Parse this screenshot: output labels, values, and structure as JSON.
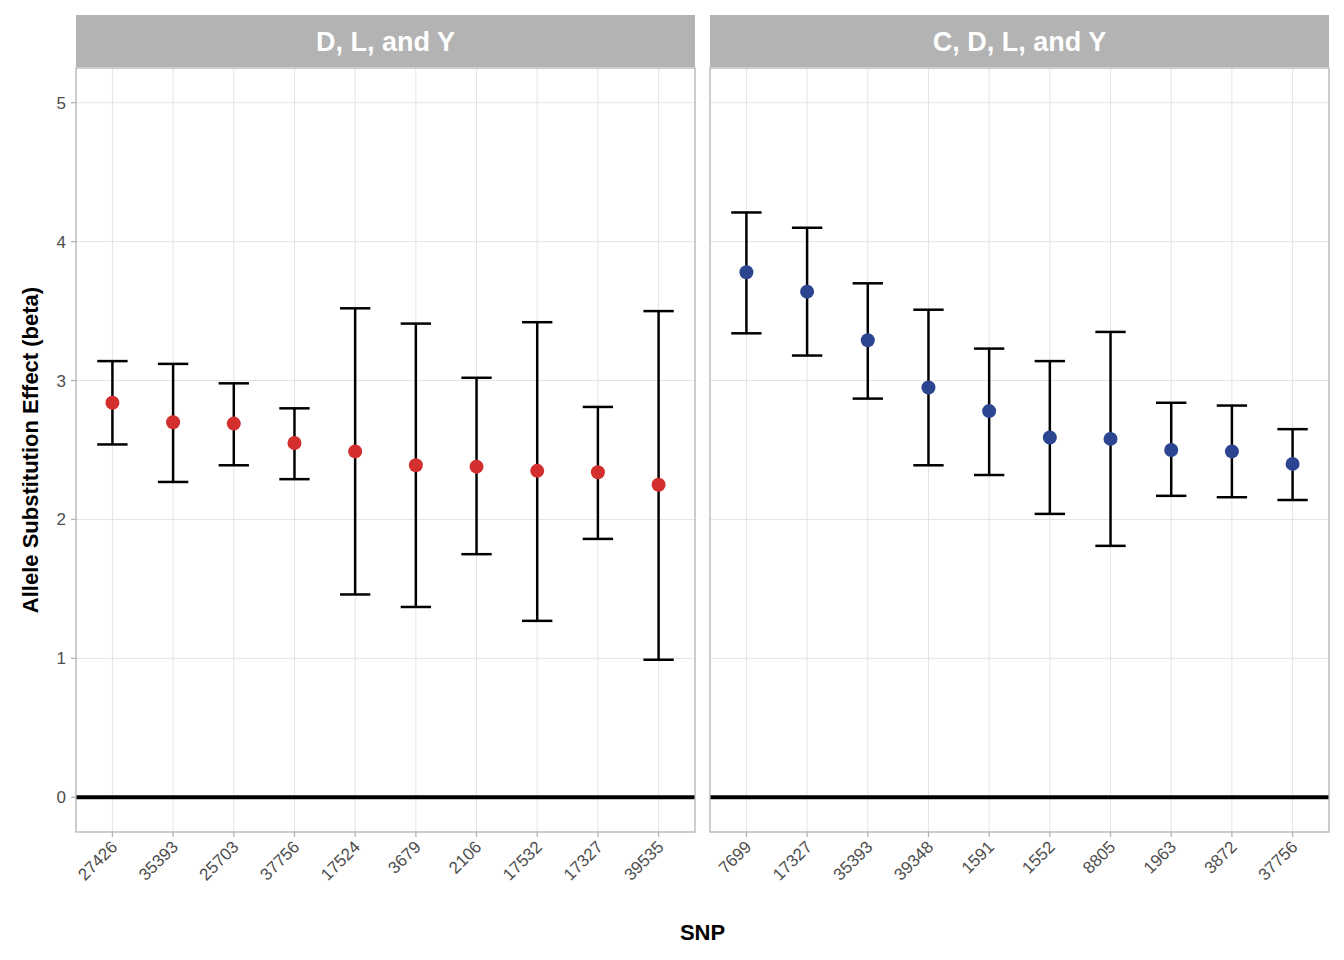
{
  "chart_data": {
    "type": "point",
    "x_label": "SNP",
    "y_label": "Allele Substitution Effect (beta)",
    "ylim": [
      -0.25,
      5.25
    ],
    "yticks": [
      0,
      1,
      2,
      3,
      4,
      5
    ],
    "grid": true,
    "reference_line": 0,
    "panels": [
      {
        "title": "D, L, and Y",
        "color": "#d32f2f",
        "categories": [
          "27426",
          "35393",
          "25703",
          "37756",
          "17524",
          "3679",
          "2106",
          "17532",
          "17327",
          "39535"
        ],
        "values": [
          2.84,
          2.7,
          2.69,
          2.55,
          2.49,
          2.39,
          2.38,
          2.35,
          2.34,
          2.25
        ],
        "lower": [
          2.54,
          2.27,
          2.39,
          2.29,
          1.46,
          1.37,
          1.75,
          1.27,
          1.86,
          0.99
        ],
        "upper": [
          3.14,
          3.12,
          2.98,
          2.8,
          3.52,
          3.41,
          3.02,
          3.42,
          2.81,
          3.5
        ]
      },
      {
        "title": "C, D, L, and Y",
        "color": "#2b4590",
        "categories": [
          "7699",
          "17327",
          "35393",
          "39348",
          "1591",
          "1552",
          "8805",
          "1963",
          "3872",
          "37756"
        ],
        "values": [
          3.78,
          3.64,
          3.29,
          2.95,
          2.78,
          2.59,
          2.58,
          2.5,
          2.49,
          2.4
        ],
        "lower": [
          3.34,
          3.18,
          2.87,
          2.39,
          2.32,
          2.04,
          1.81,
          2.17,
          2.16,
          2.14
        ],
        "upper": [
          4.21,
          4.1,
          3.7,
          3.51,
          3.23,
          3.14,
          3.35,
          2.84,
          2.82,
          2.65
        ]
      }
    ]
  }
}
